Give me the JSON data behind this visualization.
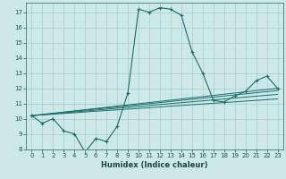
{
  "xlabel": "Humidex (Indice chaleur)",
  "bg_color": "#cce8e8",
  "grid_color": "#b0d0d0",
  "line_color": "#1a6e6e",
  "xlim": [
    -0.5,
    23.5
  ],
  "ylim": [
    8,
    17.6
  ],
  "yticks": [
    8,
    9,
    10,
    11,
    12,
    13,
    14,
    15,
    16,
    17
  ],
  "xticks": [
    0,
    1,
    2,
    3,
    4,
    5,
    6,
    7,
    8,
    9,
    10,
    11,
    12,
    13,
    14,
    15,
    16,
    17,
    18,
    19,
    20,
    21,
    22,
    23
  ],
  "xtick_labels": [
    "0",
    "1",
    "2",
    "3",
    "4",
    "5",
    "6",
    "7",
    "8",
    "9",
    "10",
    "11",
    "12",
    "13",
    "14",
    "15",
    "16",
    "17",
    "18",
    "19",
    "20",
    "21",
    "22",
    "23"
  ],
  "main_series": {
    "x": [
      0,
      1,
      2,
      3,
      4,
      5,
      6,
      7,
      8,
      9,
      10,
      11,
      12,
      13,
      14,
      15,
      16,
      17,
      18,
      19,
      20,
      21,
      22,
      23
    ],
    "y": [
      10.2,
      9.7,
      10.0,
      9.2,
      9.0,
      7.8,
      8.7,
      8.5,
      9.5,
      11.7,
      17.2,
      17.0,
      17.3,
      17.2,
      16.8,
      14.4,
      13.0,
      11.2,
      11.1,
      11.5,
      11.8,
      12.5,
      12.8,
      12.0
    ]
  },
  "trend_lines": [
    {
      "x": [
        0,
        23
      ],
      "y": [
        10.2,
        12.0
      ]
    },
    {
      "x": [
        0,
        23
      ],
      "y": [
        10.2,
        11.3
      ]
    },
    {
      "x": [
        0,
        23
      ],
      "y": [
        10.2,
        11.6
      ]
    },
    {
      "x": [
        0,
        23
      ],
      "y": [
        10.2,
        11.85
      ]
    }
  ]
}
